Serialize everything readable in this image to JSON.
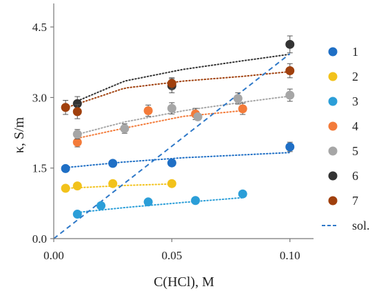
{
  "chart_data": {
    "type": "scatter",
    "xlabel": "C(HCl), M",
    "ylabel": "κ, S/m",
    "xlim": [
      0,
      0.11
    ],
    "ylim": [
      0,
      5.0
    ],
    "x_ticks": [
      "0.00",
      "0.05",
      "0.10"
    ],
    "y_ticks": [
      "0.0",
      "1.5",
      "3.0",
      "4.5"
    ],
    "legend_position": "right",
    "series": [
      {
        "name": "1",
        "color": "#1f6fc5",
        "points": [
          [
            0.005,
            1.49
          ],
          [
            0.025,
            1.6
          ],
          [
            0.05,
            1.61
          ],
          [
            0.1,
            1.95
          ]
        ],
        "errors": [
          0,
          0,
          0,
          0.1
        ],
        "trend": [
          1.51,
          1.63,
          1.72,
          1.78,
          1.83
        ]
      },
      {
        "name": "2",
        "color": "#f2c21b",
        "points": [
          [
            0.005,
            1.07
          ],
          [
            0.01,
            1.12
          ],
          [
            0.025,
            1.17
          ],
          [
            0.05,
            1.17
          ]
        ],
        "errors": [
          0,
          0,
          0,
          0
        ],
        "trend": [
          1.07,
          1.13,
          1.17,
          1.18,
          1.19
        ]
      },
      {
        "name": "3",
        "color": "#2b9ed8",
        "points": [
          [
            0.01,
            0.52
          ],
          [
            0.02,
            0.7
          ],
          [
            0.04,
            0.78
          ],
          [
            0.06,
            0.81
          ],
          [
            0.08,
            0.95
          ]
        ],
        "errors": [
          0,
          0,
          0,
          0,
          0
        ],
        "trend": [
          0.53,
          0.66,
          0.77,
          0.87,
          0.93
        ]
      },
      {
        "name": "4",
        "color": "#f37b3a",
        "points": [
          [
            0.01,
            2.05
          ],
          [
            0.04,
            2.72
          ],
          [
            0.06,
            2.65
          ],
          [
            0.08,
            2.76
          ]
        ],
        "errors": [
          0.1,
          0.12,
          0.12,
          0.12
        ],
        "trend": [
          2.08,
          2.35,
          2.6,
          2.72,
          2.82
        ]
      },
      {
        "name": "5",
        "color": "#a6a6a6",
        "points": [
          [
            0.01,
            2.22
          ],
          [
            0.03,
            2.34
          ],
          [
            0.05,
            2.77
          ],
          [
            0.061,
            2.59
          ],
          [
            0.078,
            2.98
          ],
          [
            0.1,
            3.05
          ]
        ],
        "errors": [
          0.1,
          0.1,
          0.12,
          0,
          0.12,
          0.13
        ],
        "trend": [
          2.15,
          2.48,
          2.72,
          2.9,
          3.03
        ]
      },
      {
        "name": "6",
        "color": "#333333",
        "points": [
          [
            0.01,
            2.87
          ],
          [
            0.05,
            3.25
          ],
          [
            0.1,
            4.13
          ]
        ],
        "errors": [
          0.15,
          0.15,
          0.18
        ],
        "trend": [
          2.82,
          3.35,
          3.6,
          3.78,
          3.92
        ]
      },
      {
        "name": "7",
        "color": "#a0400d",
        "points": [
          [
            0.005,
            2.79
          ],
          [
            0.01,
            2.7
          ],
          [
            0.05,
            3.3
          ],
          [
            0.1,
            3.57
          ]
        ],
        "errors": [
          0.15,
          0.15,
          0.12,
          0.15
        ],
        "trend": [
          2.78,
          3.2,
          3.35,
          3.45,
          3.55
        ]
      },
      {
        "name": "sol.",
        "color": "#2e78c8",
        "line_style": "dashed",
        "points": [
          [
            0.0,
            0.0
          ],
          [
            0.1,
            3.93
          ]
        ]
      }
    ]
  }
}
